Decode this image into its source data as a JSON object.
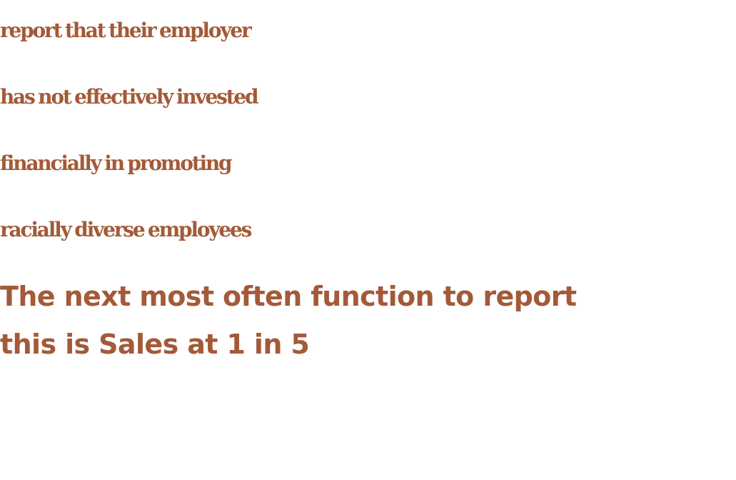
{
  "colors": {
    "text": "#a35a38",
    "background": "#ffffff"
  },
  "headline": {
    "lines": [
      "report that their employer",
      "has not effectively invested",
      "financially in promoting",
      "racially diverse employees"
    ]
  },
  "subhead": {
    "lines": [
      "The next most often function to report",
      "this is Sales at 1 in 5"
    ]
  }
}
